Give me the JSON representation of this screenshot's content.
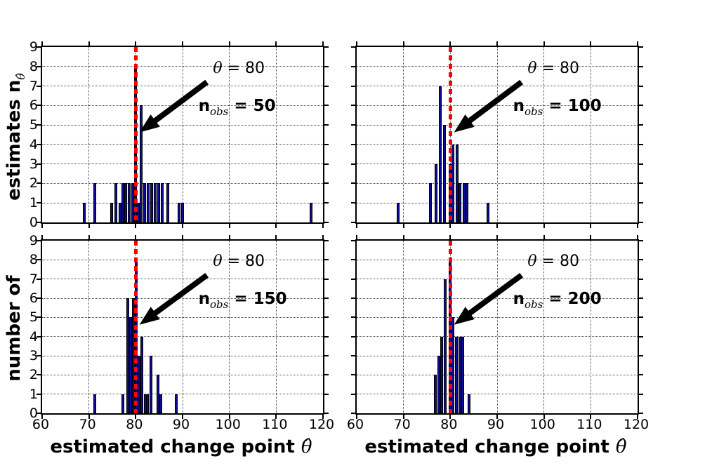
{
  "figure": {
    "background": "#ffffff",
    "bar_fill": "#0b0b96",
    "bar_edge": "#000000",
    "vline_color": "#ff0000",
    "grid_style": "dotted",
    "arrow_color": "#000000"
  },
  "chart_data": {
    "type": "bar",
    "subtype": "histogram-grid-2x2",
    "xlabel_text": "estimated change point",
    "xlabel_math": "θ̂",
    "ylabel_bottom": "number of",
    "ylabel_top_text": "estimates n",
    "ylabel_top_sub": "θ̂",
    "xlim": [
      60,
      120
    ],
    "ylim": [
      0,
      9
    ],
    "x_ticks": [
      60,
      70,
      80,
      90,
      100,
      110,
      120
    ],
    "y_ticks": [
      0,
      1,
      2,
      3,
      4,
      5,
      6,
      7,
      8,
      9
    ],
    "grid": "on",
    "true_change_point": 80,
    "vline": {
      "x": 80,
      "style": "dashed",
      "color": "#ff0000"
    },
    "bin_width": 0.6,
    "annotation": {
      "theta_symbol": "θ",
      "theta_equals": "= 80",
      "n_symbol": "n",
      "n_sub": "obs",
      "theta_pos": {
        "x": 96.5,
        "y": 7.85
      },
      "nobs_pos": {
        "x": 93.4,
        "y": 5.9
      },
      "arrow_tail": {
        "x": 95.2,
        "y": 7.2
      },
      "arrow_tip": {
        "x": 80.8,
        "y": 4.62
      }
    },
    "panels": [
      {
        "name": "n_obs = 50",
        "nobs_value": "= 50",
        "bars": [
          [
            69.0,
            1
          ],
          [
            71.2,
            2
          ],
          [
            74.8,
            1
          ],
          [
            75.8,
            2
          ],
          [
            76.7,
            1
          ],
          [
            77.3,
            2
          ],
          [
            77.9,
            2
          ],
          [
            78.6,
            2
          ],
          [
            79.3,
            2
          ],
          [
            80.0,
            8
          ],
          [
            80.6,
            1
          ],
          [
            81.2,
            6
          ],
          [
            81.9,
            2
          ],
          [
            82.6,
            2
          ],
          [
            83.4,
            2
          ],
          [
            84.1,
            2
          ],
          [
            84.9,
            2
          ],
          [
            85.7,
            2
          ],
          [
            86.9,
            2
          ],
          [
            89.3,
            1
          ],
          [
            90.0,
            1
          ],
          [
            117.5,
            1
          ]
        ]
      },
      {
        "name": "n_obs = 100",
        "nobs_value": "= 100",
        "bars": [
          [
            68.9,
            1
          ],
          [
            75.7,
            2
          ],
          [
            76.9,
            3
          ],
          [
            77.8,
            7
          ],
          [
            78.7,
            5
          ],
          [
            79.9,
            3
          ],
          [
            80.6,
            4
          ],
          [
            81.4,
            4
          ],
          [
            82.1,
            2
          ],
          [
            82.9,
            2
          ],
          [
            83.6,
            2
          ],
          [
            88.0,
            1
          ]
        ]
      },
      {
        "name": "n_obs = 150",
        "nobs_value": "= 150",
        "bars": [
          [
            71.2,
            1
          ],
          [
            77.3,
            1
          ],
          [
            78.3,
            6
          ],
          [
            78.9,
            5
          ],
          [
            79.5,
            6
          ],
          [
            80.1,
            8
          ],
          [
            80.7,
            3
          ],
          [
            81.3,
            4
          ],
          [
            82.0,
            1
          ],
          [
            82.5,
            1
          ],
          [
            83.2,
            3
          ],
          [
            84.7,
            2
          ],
          [
            85.4,
            1
          ],
          [
            88.7,
            1
          ]
        ]
      },
      {
        "name": "n_obs = 200",
        "nobs_value": "= 200",
        "bars": [
          [
            76.8,
            2
          ],
          [
            77.5,
            3
          ],
          [
            78.2,
            4
          ],
          [
            78.9,
            7
          ],
          [
            79.9,
            8
          ],
          [
            80.6,
            5
          ],
          [
            81.3,
            4
          ],
          [
            82.0,
            4
          ],
          [
            82.7,
            4
          ],
          [
            84.0,
            1
          ]
        ]
      }
    ]
  }
}
